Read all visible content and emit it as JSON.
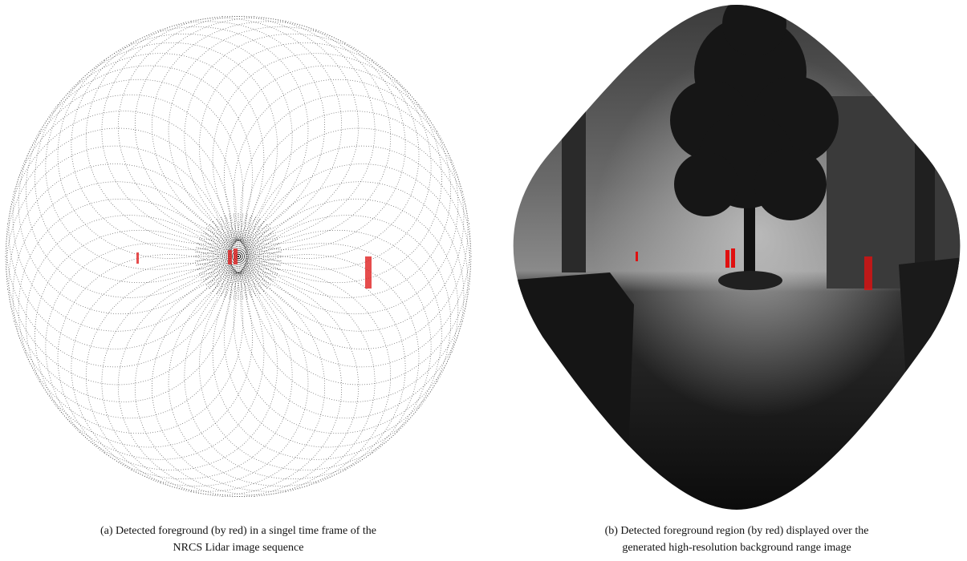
{
  "figures": [
    {
      "caption": {
        "lines": [
          "(a) Detected foreground (by red) in a singel time frame of the",
          "NRCS Lidar image sequence"
        ]
      }
    },
    {
      "caption": {
        "lines": [
          "(b) Detected foreground region (by red) displayed over the",
          "generated high-resolution background range image"
        ]
      }
    }
  ]
}
